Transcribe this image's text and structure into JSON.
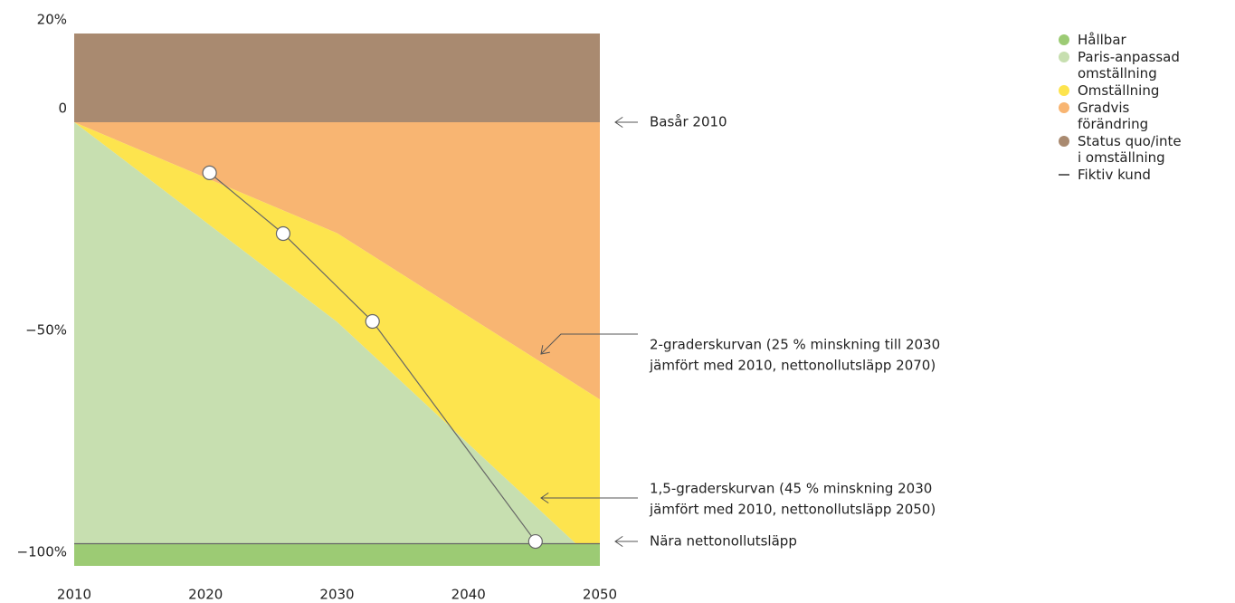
{
  "chart_data": {
    "type": "area",
    "x": [
      2010,
      2030,
      2050
    ],
    "xlim": [
      2010,
      2050
    ],
    "xticks": [
      2010,
      2020,
      2030,
      2040,
      2050
    ],
    "ylim": [
      -100,
      20
    ],
    "yticks": [
      {
        "value": 20,
        "label": "20%"
      },
      0,
      {
        "value": -50,
        "label": "−50%"
      },
      {
        "value": -100,
        "label": "−100%"
      }
    ],
    "series": [
      {
        "name": "Status quo/inte i omställning",
        "color": "#a98a70",
        "values": [
          20,
          20,
          20
        ]
      },
      {
        "name": "Gradvis förändring",
        "color": "#f8b572",
        "values": [
          0,
          0,
          0
        ]
      },
      {
        "name": "Omställning",
        "color": "#fde44e",
        "values": [
          0,
          -25,
          -62.5
        ]
      },
      {
        "name": "Paris-anpassad omställning",
        "color": "#c7dfb0",
        "values": [
          0,
          -45,
          -100
        ]
      },
      {
        "name": "Hållbar",
        "color": "#9ccb74",
        "values": [
          -95,
          -95,
          -95
        ]
      }
    ],
    "line": {
      "name": "Fiktiv kund",
      "color": "#666666",
      "x": [
        2020.3,
        2025.9,
        2032.7,
        2045.1
      ],
      "values": [
        -11.4,
        -25.1,
        -44.9,
        -94.5
      ]
    },
    "legend_order": [
      4,
      3,
      2,
      1,
      0
    ],
    "annotations": [
      {
        "lines": [
          "Basår 2010"
        ]
      },
      {
        "lines": [
          "2-graderskurvan (25 % minskning till 2030",
          "jämfört med 2010, nettonollutsläpp 2070)"
        ]
      },
      {
        "lines": [
          "1,5-graderskurvan (45 % minskning 2030",
          "jämfört med 2010, nettonollutsläpp 2050)"
        ]
      },
      {
        "lines": [
          "Nära nettonollutsläpp"
        ]
      }
    ]
  }
}
